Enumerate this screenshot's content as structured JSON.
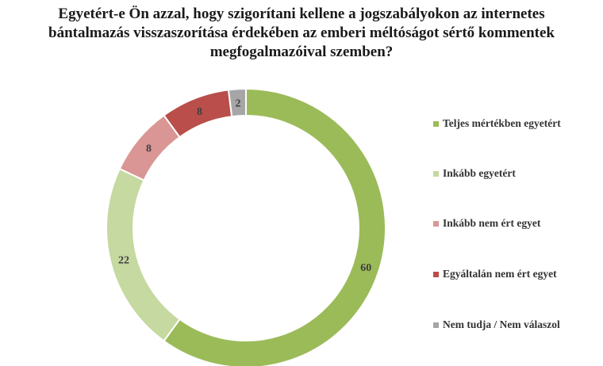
{
  "title_lines": [
    "Egyetért-e Ön azzal, hogy szigorítani kellene a jogszabályokon az internetes",
    "bántalmazás visszaszorítása érdekében az emberi méltóságot sértő kommentek",
    "megfogalmazóival szemben?"
  ],
  "chart_data": {
    "type": "pie",
    "variant": "doughnut",
    "title": "Egyetért-e Ön azzal, hogy szigorítani kellene a jogszabályokon az internetes bántalmazás visszaszorítása érdekében az emberi méltóságot sértő kommentek megfogalmazóival szemben?",
    "categories": [
      "Teljes mértékben egyetért",
      "Inkább egyetért",
      "Inkább nem ért egyet",
      "Egyáltalán nem ért egyet",
      "Nem tudja / Nem válaszol"
    ],
    "values": [
      60,
      22,
      8,
      8,
      2
    ],
    "data_labels": [
      "60",
      "22",
      "8",
      "8",
      "2"
    ],
    "colors": [
      "#9bbb59",
      "#c5d9a0",
      "#d99694",
      "#b94e4a",
      "#a6a6a6"
    ],
    "legend_position": "right"
  }
}
